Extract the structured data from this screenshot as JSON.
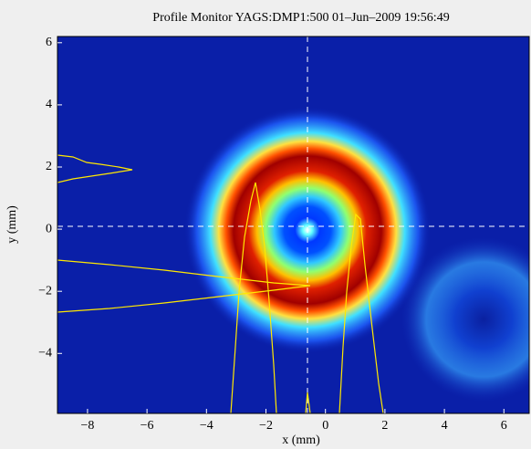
{
  "chart_data": {
    "type": "image",
    "title": "Profile Monitor YAGS:DMP1:500 01–Jun–2009 19:56:49",
    "xlabel": "x  (mm)",
    "ylabel": "y  (mm)",
    "xlim": [
      -9.01,
      6.85
    ],
    "ylim": [
      -5.93,
      6.2
    ],
    "xticks": [
      {
        "value": -8,
        "label": "−8"
      },
      {
        "value": -6,
        "label": "−6"
      },
      {
        "value": -4,
        "label": "−4"
      },
      {
        "value": -2,
        "label": "−2"
      },
      0,
      2,
      4,
      6
    ],
    "yticks": [
      {
        "value": -4,
        "label": "−4"
      },
      {
        "value": -2,
        "label": "−2"
      },
      0,
      2,
      4,
      6
    ]
  }
}
